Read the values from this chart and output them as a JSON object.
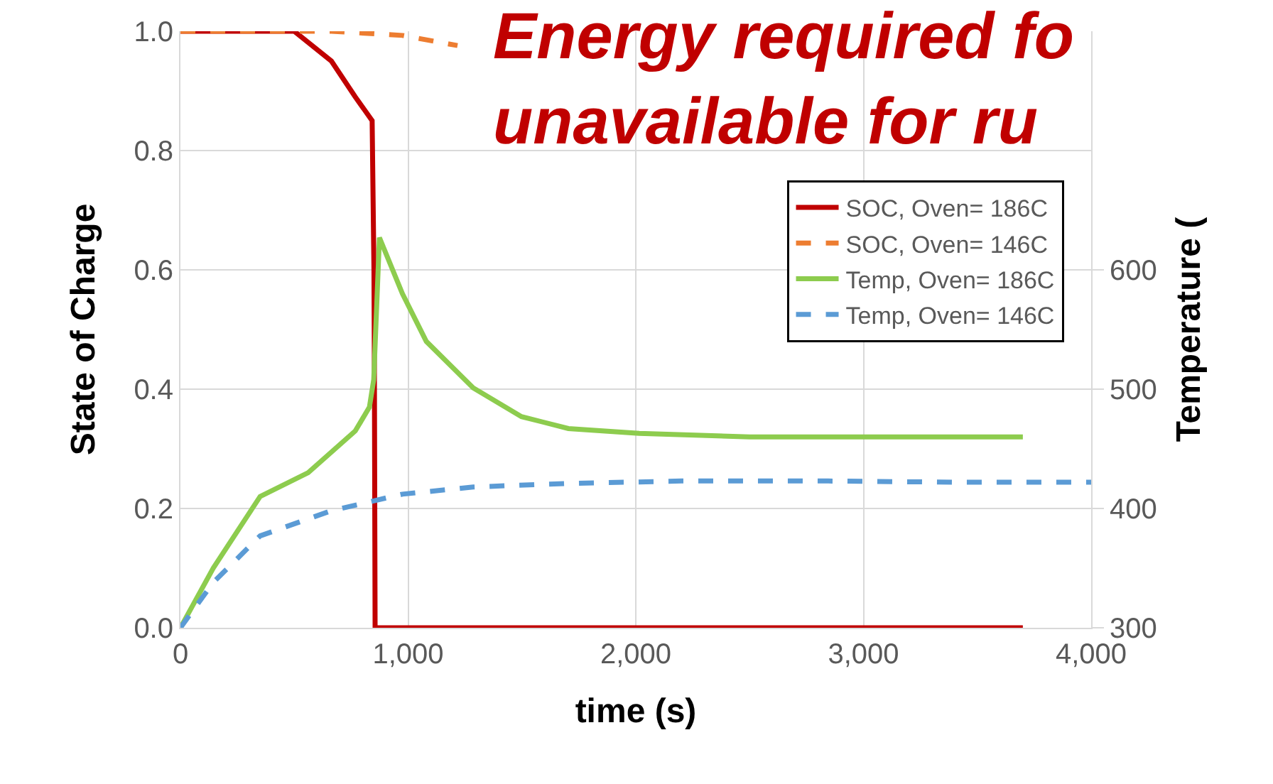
{
  "chart_data": {
    "type": "line",
    "title": "Energy required fo\nunavailable for ru",
    "xlabel": "time (s)",
    "ylabel": "State of Charge",
    "y2label": "Temperature (",
    "xlim": [
      0,
      4000
    ],
    "xticks": [
      {
        "value": 0,
        "label": "0"
      },
      {
        "value": 1000,
        "label": "1,000"
      },
      {
        "value": 2000,
        "label": "2,000"
      },
      {
        "value": 3000,
        "label": "3,000"
      },
      {
        "value": 4000,
        "label": "4,000"
      }
    ],
    "ylim": [
      0,
      1
    ],
    "yticks": [
      {
        "value": 0,
        "label": "0.0"
      },
      {
        "value": 0.2,
        "label": "0.2"
      },
      {
        "value": 0.4,
        "label": "0.4"
      },
      {
        "value": 0.6,
        "label": "0.6"
      },
      {
        "value": 0.8,
        "label": "0.8"
      },
      {
        "value": 1,
        "label": "1.0"
      }
    ],
    "y2lim": [
      300,
      800
    ],
    "y2ticks": [
      300,
      400,
      500,
      600
    ],
    "grid": true,
    "legend": "top right",
    "series": [
      {
        "name": "SOC, Oven= 186C",
        "color": "#c00000",
        "line_style": "solid",
        "x": [
          0,
          500,
          663,
          768,
          842,
          850,
          852,
          855,
          3700
        ],
        "values": [
          1.0,
          1.0,
          0.95,
          0.89,
          0.85,
          0.6,
          0.42,
          0,
          0
        ]
      },
      {
        "name": "SOC, Oven= 146C",
        "color": "#ed7d31",
        "line_style": "dashed",
        "x": [
          0,
          663,
          975,
          1217
        ],
        "values": [
          1.0,
          1.0,
          0.993,
          0.976
        ]
      },
      {
        "name": "Temp, Oven= 186C",
        "color": "#8dcc4e",
        "line_style": "solid",
        "axis": "y2",
        "x": [
          0,
          144,
          350,
          561,
          768,
          830,
          849,
          874,
          975,
          1080,
          1286,
          1498,
          1704,
          2015,
          2500,
          3700
        ],
        "values": [
          300,
          350,
          410,
          430,
          465,
          485,
          508,
          627,
          580,
          540,
          501,
          477,
          467,
          463,
          460,
          460
        ]
      },
      {
        "name": "Temp, Oven= 146C",
        "color": "#5b9bd5",
        "line_style": "dashed",
        "axis": "y2",
        "x": [
          0,
          144,
          350,
          661,
          975,
          1286,
          1704,
          2200,
          2846,
          3400,
          4000
        ],
        "values": [
          300,
          338,
          377,
          398,
          412,
          418,
          421,
          423,
          423,
          422,
          422
        ]
      }
    ]
  }
}
